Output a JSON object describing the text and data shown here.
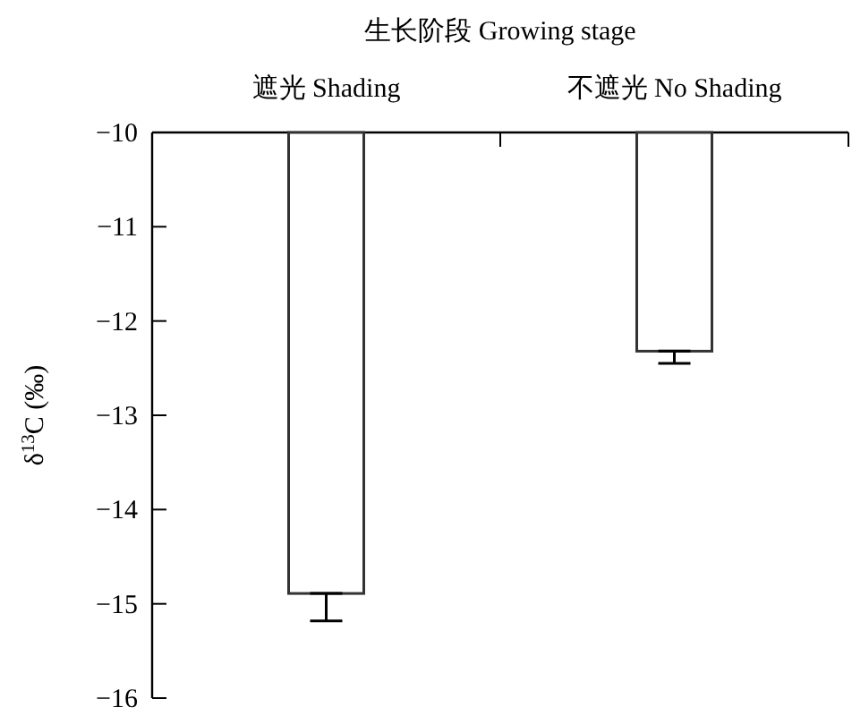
{
  "chart_data": {
    "type": "bar",
    "xlabel": "生长阶段 Growing stage",
    "ylabel": "δ$^{13}$C (‰)",
    "categories": [
      "遮光 Shading",
      "不遮光 No Shading"
    ],
    "values": [
      -14.89,
      -12.32
    ],
    "errors": [
      [
        -15.18,
        -14.89
      ],
      [
        -12.45,
        -12.32
      ]
    ],
    "color": "#ffffff",
    "ylim": [
      -16,
      -10
    ],
    "yticks": [
      {
        "value": -10,
        "label": "−10"
      },
      {
        "value": -11,
        "label": "−11"
      },
      {
        "value": -12,
        "label": "−12"
      },
      {
        "value": -13,
        "label": "−13"
      },
      {
        "value": -14,
        "label": "−14"
      },
      {
        "value": -15,
        "label": "−15"
      },
      {
        "value": -16,
        "label": "−16"
      }
    ],
    "grid": false
  }
}
